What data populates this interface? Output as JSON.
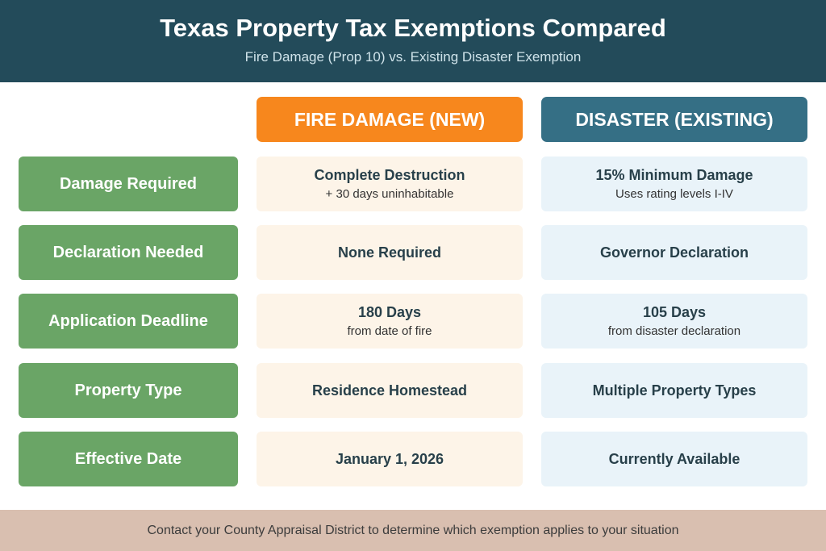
{
  "header": {
    "title": "Texas Property Tax Exemptions Compared",
    "subtitle": "Fire Damage (Prop 10) vs. Existing Disaster Exemption"
  },
  "columns": {
    "fire": "FIRE DAMAGE (NEW)",
    "disaster": "DISASTER (EXISTING)"
  },
  "rows": [
    {
      "label": "Damage Required",
      "fire": {
        "main": "Complete Destruction",
        "sub": "+ 30 days uninhabitable"
      },
      "disaster": {
        "main": "15% Minimum Damage",
        "sub": "Uses rating levels I-IV"
      }
    },
    {
      "label": "Declaration Needed",
      "fire": {
        "main": "None Required"
      },
      "disaster": {
        "main": "Governor Declaration"
      }
    },
    {
      "label": "Application Deadline",
      "fire": {
        "main": "180 Days",
        "sub": "from date of fire"
      },
      "disaster": {
        "main": "105 Days",
        "sub": "from disaster declaration"
      }
    },
    {
      "label": "Property Type",
      "fire": {
        "main": "Residence Homestead"
      },
      "disaster": {
        "main": "Multiple Property Types"
      }
    },
    {
      "label": "Effective Date",
      "fire": {
        "main": "January 1, 2026"
      },
      "disaster": {
        "main": "Currently Available"
      }
    }
  ],
  "footer": "Contact your County Appraisal District to determine which exemption applies to your situation"
}
